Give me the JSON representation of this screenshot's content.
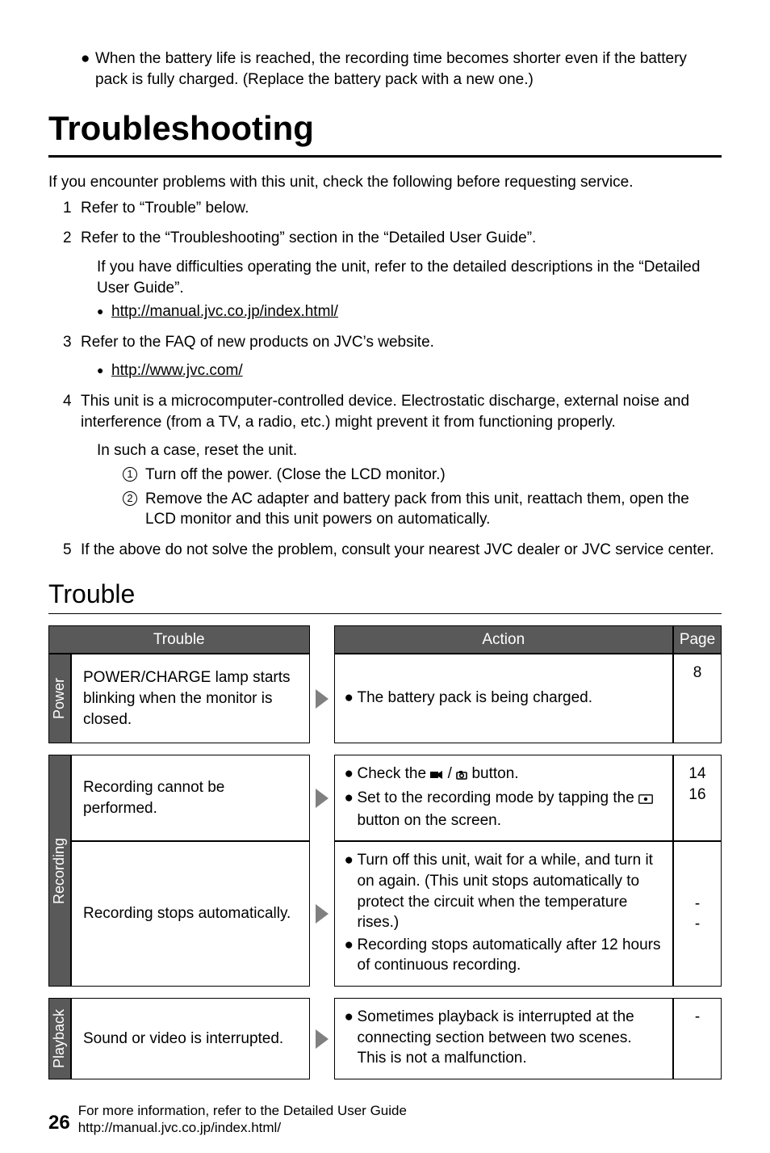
{
  "top_bullet": "When the battery life is reached, the recording time becomes shorter even if the battery pack is fully charged. (Replace the battery pack with a new one.)",
  "heading": "Troubleshooting",
  "intro": "If you encounter problems with this unit, check the following before requesting service.",
  "steps": [
    {
      "num": "1",
      "text": "Refer to “Trouble” below."
    },
    {
      "num": "2",
      "text": "Refer to the “Troubleshooting” section in the “Detailed User Guide”.",
      "sub_text": "If you have difficulties operating the unit, refer to the detailed descriptions in the “Detailed User Guide”.",
      "link": "http://manual.jvc.co.jp/index.html/"
    },
    {
      "num": "3",
      "text": "Refer to the FAQ of new products on JVC’s website.",
      "link": "http://www.jvc.com/"
    },
    {
      "num": "4",
      "text": "This unit is a microcomputer-controlled device. Electrostatic discharge, external noise and interference (from a TV, a radio, etc.) might prevent it from functioning properly.",
      "sub_text": "In such a case, reset the unit.",
      "circled": [
        "Turn off the power. (Close the LCD monitor.)",
        "Remove the AC adapter and battery pack from this unit, reattach them, open the LCD monitor and this unit powers on automatically."
      ]
    },
    {
      "num": "5",
      "text": "If the above do not solve the problem, consult your nearest JVC dealer or JVC service center."
    }
  ],
  "sub_heading": "Trouble",
  "table": {
    "headers": {
      "trouble": "Trouble",
      "action": "Action",
      "page": "Page"
    },
    "categories": [
      {
        "label": "Power",
        "rows": [
          {
            "trouble": "POWER/CHARGE lamp starts blinking when the monitor is closed.",
            "actions": [
              "The battery pack is being charged."
            ],
            "pages": [
              "8"
            ]
          }
        ]
      },
      {
        "label": "Recording",
        "rows": [
          {
            "trouble": "Recording cannot be performed.",
            "actions_html": [
              "Check the <span class=\"icon-inline\"><svg width=\"16\" height=\"12\" viewBox=\"0 0 16 12\"><rect x=\"0\" y=\"2\" width=\"10\" height=\"8\" fill=\"#000\"/><polygon points=\"10,4 15,1 15,11 10,8\" fill=\"#000\"/></svg></span> / <span class=\"icon-inline\"><svg width=\"14\" height=\"12\" viewBox=\"0 0 14 12\"><rect x=\"1\" y=\"3\" width=\"12\" height=\"8\" rx=\"1\" fill=\"none\" stroke=\"#000\" stroke-width=\"1.6\"/><rect x=\"4\" y=\"1\" width=\"4\" height=\"3\" fill=\"#000\"/><circle cx=\"7\" cy=\"7\" r=\"2.3\" fill=\"none\" stroke=\"#000\" stroke-width=\"1.6\"/></svg></span> button.",
              "Set to the recording mode by tapping the <span class=\"icon-inline\"><svg width=\"18\" height=\"12\" viewBox=\"0 0 18 12\"><rect x=\"0.8\" y=\"0.8\" width=\"16.4\" height=\"10.4\" rx=\"1\" fill=\"none\" stroke=\"#000\" stroke-width=\"1.4\"/><circle cx=\"9\" cy=\"6\" r=\"2.2\" fill=\"#000\"/></svg></span> button on the screen."
            ],
            "pages": [
              "14",
              "16"
            ]
          },
          {
            "trouble": "Recording stops automatically.",
            "actions": [
              "Turn off this unit, wait for a while, and turn it on again. (This unit stops automatically to protect the circuit when the temperature rises.)",
              "Recording stops automatically after 12 hours of continuous recording."
            ],
            "pages": [
              "-",
              "-"
            ],
            "page_layout": "split"
          }
        ]
      },
      {
        "label": "Playback",
        "rows": [
          {
            "trouble": "Sound or video is interrupted.",
            "actions": [
              "Sometimes playback is interrupted at the connecting section between two scenes. This is not a malfunction."
            ],
            "pages": [
              "-"
            ]
          }
        ]
      }
    ]
  },
  "footer": {
    "page_num": "26",
    "line1": "For more information, refer to the Detailed User Guide",
    "line2": "http://manual.jvc.co.jp/index.html/"
  },
  "colors": {
    "header_bg": "#595959",
    "header_fg": "#ffffff",
    "border": "#000000",
    "arrow": "#808080"
  }
}
